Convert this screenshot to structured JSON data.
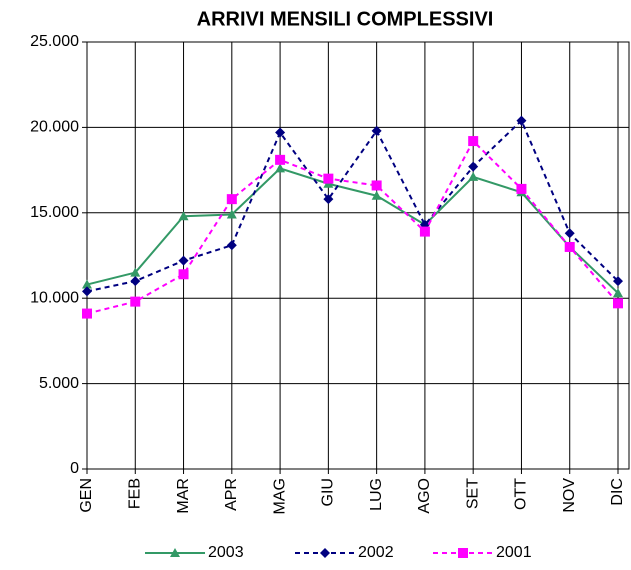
{
  "chart_data": {
    "type": "line",
    "title": "ARRIVI MENSILI COMPLESSIVI",
    "categories": [
      "GEN",
      "FEB",
      "MAR",
      "APR",
      "MAG",
      "GIU",
      "LUG",
      "AGO",
      "SET",
      "OTT",
      "NOV",
      "DIC"
    ],
    "series": [
      {
        "name": "2003",
        "color": "#339966",
        "marker": "triangle",
        "dash": false,
        "values": [
          10800,
          11500,
          14800,
          14900,
          17600,
          16700,
          16000,
          14300,
          17100,
          16200,
          13000,
          10300
        ]
      },
      {
        "name": "2002",
        "color": "#000080",
        "marker": "diamond",
        "dash": true,
        "values": [
          10400,
          11000,
          12200,
          13100,
          19700,
          15800,
          19800,
          14300,
          17700,
          20400,
          13800,
          11000
        ]
      },
      {
        "name": "2001",
        "color": "#ff00ff",
        "marker": "square",
        "dash": true,
        "values": [
          9100,
          9800,
          11400,
          15800,
          18100,
          17000,
          16600,
          13900,
          19200,
          16400,
          13000,
          9700
        ]
      }
    ],
    "ylim": [
      0,
      25000
    ],
    "yticks": [
      0,
      {
        "value": 5000,
        "label": "5.000"
      },
      {
        "value": 10000,
        "label": "10.000"
      },
      {
        "value": 15000,
        "label": "15.000"
      },
      {
        "value": 20000,
        "label": "20.000"
      },
      {
        "value": 25000,
        "label": "25.000"
      }
    ],
    "grid": true,
    "legend": "bottom"
  }
}
